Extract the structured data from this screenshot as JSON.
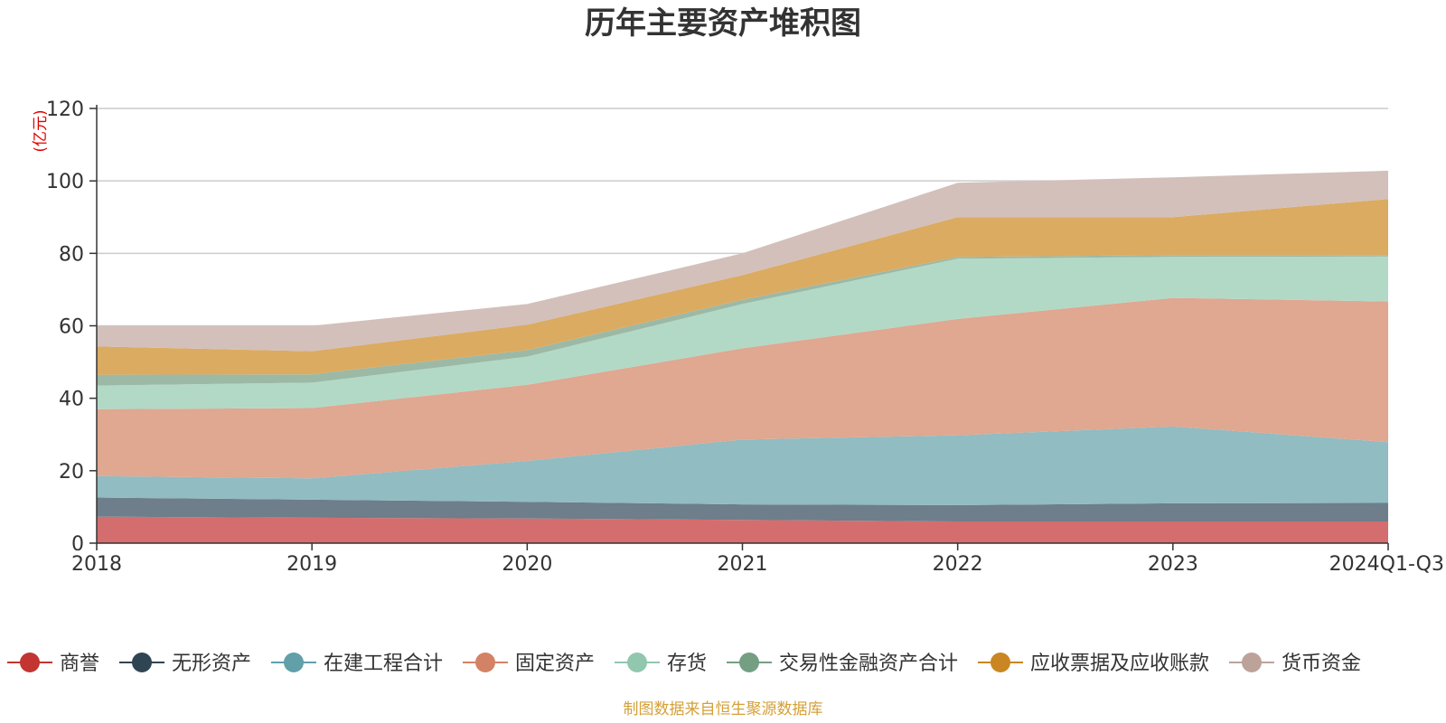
{
  "chart_data": {
    "type": "area",
    "stacked": true,
    "title": "历年主要资产堆积图",
    "unit_label": "(亿元)",
    "source_note": "制图数据来自恒生聚源数据库",
    "categories": [
      "2018",
      "2019",
      "2020",
      "2021",
      "2022",
      "2023",
      "2024Q1-Q3"
    ],
    "ylim": [
      0,
      120
    ],
    "yticks": [
      0,
      20,
      40,
      60,
      80,
      100,
      120
    ],
    "grid": true,
    "legend_position": "bottom",
    "series": [
      {
        "name": "商誉",
        "color": "#c23531",
        "fill": "#d46e6e",
        "values": [
          7.3,
          7.0,
          6.8,
          6.4,
          6.0,
          6.0,
          6.0
        ]
      },
      {
        "name": "无形资产",
        "color": "#2f4554",
        "fill": "#6e7e8a",
        "values": [
          5.3,
          5.0,
          4.6,
          4.3,
          4.5,
          5.0,
          5.1
        ]
      },
      {
        "name": "在建工程合计",
        "color": "#61a0a8",
        "fill": "#90bcc2",
        "values": [
          5.9,
          5.9,
          11.3,
          17.9,
          19.3,
          21.2,
          16.8
        ]
      },
      {
        "name": "固定资产",
        "color": "#d48265",
        "fill": "#e0a791",
        "values": [
          18.5,
          19.4,
          21.0,
          25.2,
          32.1,
          35.5,
          38.8
        ]
      },
      {
        "name": "存货",
        "color": "#91c7ae",
        "fill": "#b2d9c6",
        "values": [
          6.5,
          7.0,
          7.8,
          12.2,
          16.6,
          11.3,
          12.4
        ]
      },
      {
        "name": "交易性金融资产合计",
        "color": "#749f83",
        "fill": "#9cb9a6",
        "values": [
          3.0,
          2.3,
          1.8,
          1.2,
          0.5,
          0.5,
          0.4
        ]
      },
      {
        "name": "应收票据及应收账款",
        "color": "#ca8622",
        "fill": "#dbab62",
        "values": [
          7.8,
          6.4,
          7.0,
          6.8,
          11.0,
          10.5,
          15.5
        ]
      },
      {
        "name": "货币资金",
        "color": "#bda29a",
        "fill": "#d3c0ba",
        "values": [
          5.7,
          7.0,
          5.7,
          6.0,
          9.5,
          11.0,
          7.8
        ]
      }
    ]
  }
}
